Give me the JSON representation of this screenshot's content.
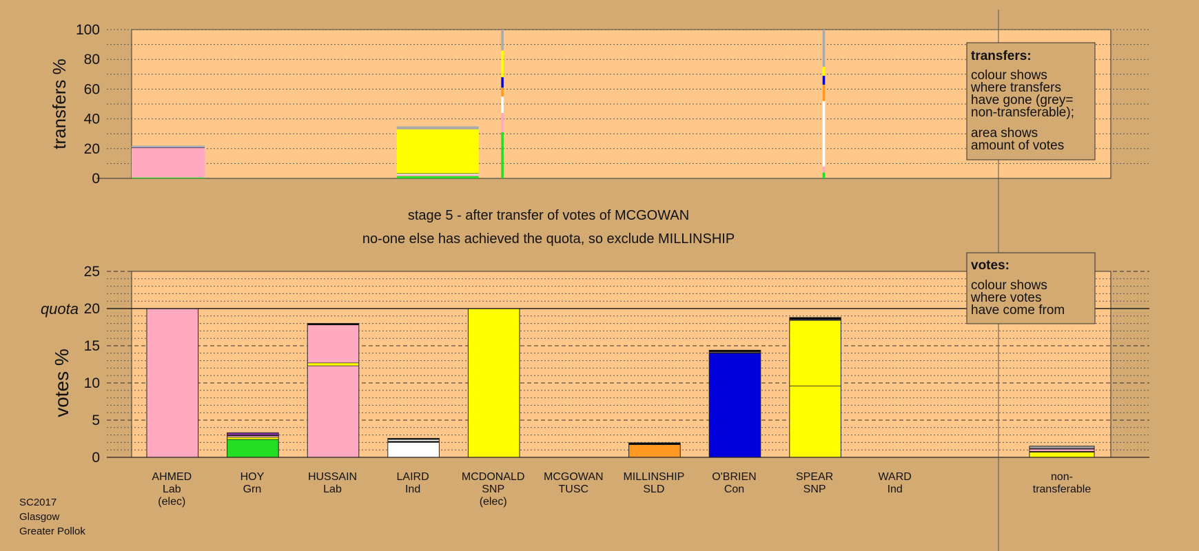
{
  "chart_data": [
    {
      "type": "bar",
      "name": "transfers",
      "ylabel": "transfers %",
      "ylim": [
        0,
        100
      ],
      "yticks": [
        0,
        20,
        40,
        60,
        80,
        100
      ],
      "grid": "dotted every 10",
      "legend": {
        "title": "transfers:",
        "lines": [
          "colour shows",
          "where transfers",
          "have gone (grey=",
          "non-transferable);"
        ],
        "lines2": [
          "area shows",
          "amount of votes"
        ]
      },
      "bars": [
        {
          "x0": 0.0,
          "x1": 0.91,
          "segments": [
            {
              "color": "#22dd22",
              "value": 0.6
            },
            {
              "color": "#ffaac0",
              "value": 19.9
            },
            {
              "color": "#000000",
              "value": 0.3
            },
            {
              "color": "#aaaaee",
              "value": 0.5
            },
            {
              "color": "#aaaaaa",
              "value": 0.7
            }
          ]
        },
        {
          "x0": 3.3,
          "x1": 4.32,
          "segments": [
            {
              "color": "#22dd22",
              "value": 1.5
            },
            {
              "color": "#ffaac0",
              "value": 0.8
            },
            {
              "color": "#ffffff",
              "value": 0.8
            },
            {
              "color": "#000000",
              "value": 0.3
            },
            {
              "color": "#ffff00",
              "value": 29.6
            },
            {
              "color": "#aaaaaa",
              "value": 2.0
            }
          ]
        },
        {
          "x0": 4.6,
          "x1": 4.63,
          "segments": [
            {
              "color": "#22dd22",
              "value": 31
            },
            {
              "color": "#ffaac0",
              "value": 13
            },
            {
              "color": "#ffffff",
              "value": 11
            },
            {
              "color": "#ff9922",
              "value": 6
            },
            {
              "color": "#0000dd",
              "value": 7
            },
            {
              "color": "#ffff00",
              "value": 18
            },
            {
              "color": "#aaaaaa",
              "value": 14
            }
          ]
        },
        {
          "x0": 8.6,
          "x1": 8.63,
          "segments": [
            {
              "color": "#22dd22",
              "value": 4
            },
            {
              "color": "#ffaac0",
              "value": 4
            },
            {
              "color": "#ffffff",
              "value": 44
            },
            {
              "color": "#ff9922",
              "value": 11
            },
            {
              "color": "#0000dd",
              "value": 6
            },
            {
              "color": "#ffff00",
              "value": 6
            },
            {
              "color": "#aaaaaa",
              "value": 25
            }
          ]
        }
      ]
    },
    {
      "type": "bar",
      "name": "votes",
      "ylabel": "votes %",
      "ylim": [
        0,
        25
      ],
      "yticks": [
        0,
        5,
        10,
        15,
        20,
        25
      ],
      "quota": 20,
      "quota_label": "quota",
      "grid": "dashed every 5, dotted every 1",
      "legend": {
        "title": "votes:",
        "lines": [
          "colour shows",
          "where votes",
          "have come from"
        ]
      },
      "categories": [
        {
          "name": "AHMED",
          "party": "Lab",
          "note": "(elec)",
          "segments": [
            {
              "color": "#ffaac0",
              "value": 20
            }
          ]
        },
        {
          "name": "HOY",
          "party": "Grn",
          "note": "",
          "segments": [
            {
              "color": "#22dd22",
              "value": 2.4
            },
            {
              "color": "#ffff00",
              "value": 0.3
            },
            {
              "color": "#ffaac0",
              "value": 0.2
            },
            {
              "color": "#000000",
              "value": 0.08
            },
            {
              "color": "#8833aa",
              "value": 0.32
            }
          ]
        },
        {
          "name": "HUSSAIN",
          "party": "Lab",
          "note": "",
          "segments": [
            {
              "color": "#ffaac0",
              "value": 12.3
            },
            {
              "color": "#ffff00",
              "value": 0.4
            },
            {
              "color": "#ffaac0",
              "value": 5.1
            },
            {
              "color": "#000000",
              "value": 0.2
            }
          ]
        },
        {
          "name": "LAIRD",
          "party": "Ind",
          "note": "",
          "segments": [
            {
              "color": "#ffffff",
              "value": 2.0
            },
            {
              "color": "#000000",
              "value": 0.15
            },
            {
              "color": "#ffffff",
              "value": 0.25
            },
            {
              "color": "#000000",
              "value": 0.15
            }
          ]
        },
        {
          "name": "MCDONALD",
          "party": "SNP",
          "note": "(elec)",
          "segments": [
            {
              "color": "#ffff00",
              "value": 20
            }
          ]
        },
        {
          "name": "MCGOWAN",
          "party": "TUSC",
          "note": "",
          "segments": []
        },
        {
          "name": "MILLINSHIP",
          "party": "SLD",
          "note": "",
          "segments": [
            {
              "color": "#ff9922",
              "value": 1.7
            },
            {
              "color": "#000000",
              "value": 0.25
            }
          ]
        },
        {
          "name": "O'BRIEN",
          "party": "Con",
          "note": "",
          "segments": [
            {
              "color": "#0000dd",
              "value": 14.0
            },
            {
              "color": "#000000",
              "value": 0.1
            },
            {
              "color": "#ffaac0",
              "value": 0.1
            },
            {
              "color": "#000000",
              "value": 0.2
            }
          ]
        },
        {
          "name": "SPEAR",
          "party": "SNP",
          "note": "",
          "segments": [
            {
              "color": "#ffff00",
              "value": 9.6
            },
            {
              "color": "#ffff00",
              "value": 8.8
            },
            {
              "color": "#aaaaee",
              "value": 0.1
            },
            {
              "color": "#000000",
              "value": 0.3
            }
          ]
        },
        {
          "name": "WARD",
          "party": "Ind",
          "note": "",
          "segments": []
        }
      ],
      "nontransferable": {
        "name": "non-",
        "name2": "transferable",
        "segments": [
          {
            "color": "#ffff00",
            "value": 0.7
          },
          {
            "color": "#000000",
            "value": 0.1
          },
          {
            "color": "#ffaac0",
            "value": 0.3
          },
          {
            "color": "#8833aa",
            "value": 0.1
          },
          {
            "color": "#aaaaaa",
            "value": 0.3
          }
        ]
      }
    }
  ],
  "stage_text": "stage 5 - after transfer of votes of MCGOWAN",
  "status_text": "no-one else has achieved the quota, so exclude MILLINSHIP",
  "footer": {
    "line1": "SC2017",
    "line2": "Glasgow",
    "line3": "Greater Pollok"
  }
}
